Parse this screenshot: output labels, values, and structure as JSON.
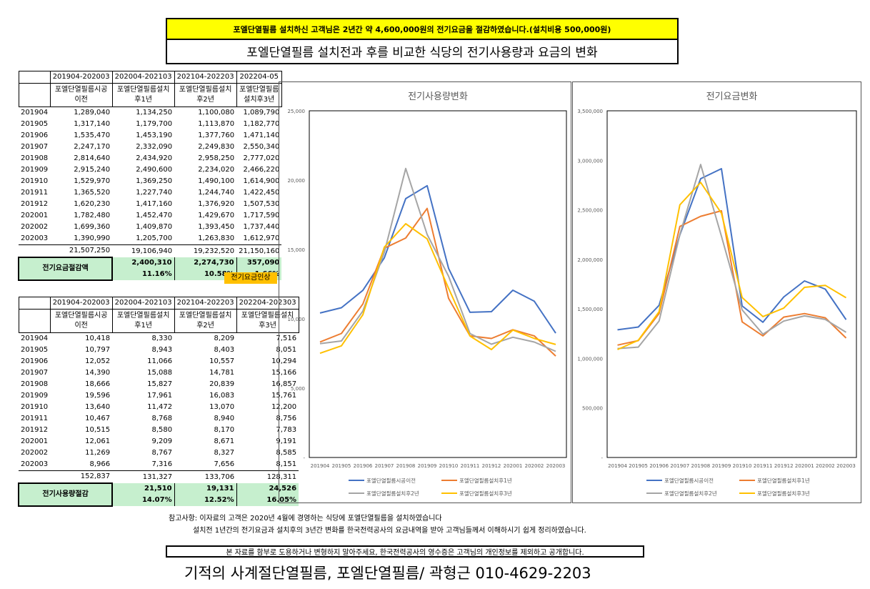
{
  "banner": "포엘단열필름 설치하신 고객님은 2년간 약 4,600,000원의 전기요금을 절감하였습니다.(설치비용 500,000원)",
  "subtitle": "포엘단열필름 설치전과 후를 비교한 식당의 전기사용량과 요금의 변화",
  "table1": {
    "periods": [
      "201904-202003",
      "202004-202103",
      "202104-202203",
      "202204-05"
    ],
    "labels": [
      "포엘단열필름시공이전",
      "포엘단열필름설치후1년",
      "포엘단열필름설치후2년",
      "포엘단열필름설치후3년"
    ],
    "rows": [
      [
        "201904",
        "1,289,040",
        "1,134,250",
        "1,100,080",
        "1,089,790"
      ],
      [
        "201905",
        "1,317,140",
        "1,179,700",
        "1,113,870",
        "1,182,770"
      ],
      [
        "201906",
        "1,535,470",
        "1,453,190",
        "1,377,760",
        "1,471,140"
      ],
      [
        "201907",
        "2,247,170",
        "2,332,090",
        "2,249,830",
        "2,550,340"
      ],
      [
        "201908",
        "2,814,640",
        "2,434,920",
        "2,958,250",
        "2,777,020"
      ],
      [
        "201909",
        "2,915,240",
        "2,490,600",
        "2,234,020",
        "2,466,220"
      ],
      [
        "201910",
        "1,529,970",
        "1,369,250",
        "1,490,100",
        "1,614,900"
      ],
      [
        "201911",
        "1,365,520",
        "1,227,740",
        "1,244,740",
        "1,422,450"
      ],
      [
        "201912",
        "1,620,230",
        "1,417,160",
        "1,376,920",
        "1,507,530"
      ],
      [
        "202001",
        "1,782,480",
        "1,452,470",
        "1,429,670",
        "1,717,590"
      ],
      [
        "202002",
        "1,699,360",
        "1,409,870",
        "1,393,450",
        "1,737,440"
      ],
      [
        "202003",
        "1,390,990",
        "1,205,700",
        "1,263,830",
        "1,612,970"
      ]
    ],
    "totals": [
      "21,507,250",
      "19,106,940",
      "19,232,520",
      "21,150,160"
    ],
    "saving_label": "전기요금절감액",
    "savings": [
      "2,400,310",
      "2,274,730",
      "357,090"
    ],
    "saving_pct": [
      "11.16%",
      "10.58%",
      "1.66%"
    ],
    "increase_note": "전기요금인상"
  },
  "table2": {
    "periods": [
      "201904-202003",
      "202004-202103",
      "202104-202203",
      "202204-202303"
    ],
    "labels": [
      "포엘단열필름시공이전",
      "포엘단열필름설치후1년",
      "포엘단열필름설치후2년",
      "포엘단열필름설치후3년"
    ],
    "rows": [
      [
        "201904",
        "10,418",
        "8,330",
        "8,209",
        "7,516"
      ],
      [
        "201905",
        "10,797",
        "8,943",
        "8,403",
        "8,051"
      ],
      [
        "201906",
        "12,052",
        "11,066",
        "10,557",
        "10,294"
      ],
      [
        "201907",
        "14,390",
        "15,088",
        "14,781",
        "15,166"
      ],
      [
        "201908",
        "18,666",
        "15,827",
        "20,839",
        "16,857"
      ],
      [
        "201909",
        "19,596",
        "17,961",
        "16,083",
        "15,761"
      ],
      [
        "201910",
        "13,640",
        "11,472",
        "13,070",
        "12,200"
      ],
      [
        "201911",
        "10,467",
        "8,768",
        "8,940",
        "8,756"
      ],
      [
        "201912",
        "10,515",
        "8,580",
        "8,170",
        "7,783"
      ],
      [
        "202001",
        "12,061",
        "9,209",
        "8,671",
        "9,191"
      ],
      [
        "202002",
        "11,269",
        "8,767",
        "8,327",
        "8,585"
      ],
      [
        "202003",
        "8,966",
        "7,316",
        "7,656",
        "8,151"
      ]
    ],
    "totals": [
      "152,837",
      "131,327",
      "133,706",
      "128,311"
    ],
    "saving_label": "전기사용량절감",
    "savings": [
      "21,510",
      "19,131",
      "24,526"
    ],
    "saving_pct": [
      "14.07%",
      "12.52%",
      "16.05%"
    ]
  },
  "chart_data": [
    {
      "type": "line",
      "title": "전기사용량변화",
      "categories": [
        "201904",
        "201905",
        "201906",
        "201907",
        "201908",
        "201909",
        "201910",
        "201911",
        "201912",
        "202001",
        "202002",
        "202003"
      ],
      "ylim": [
        0,
        25000
      ],
      "yticks": [
        0,
        5000,
        10000,
        15000,
        20000,
        25000
      ],
      "ytick_labels": [
        "-",
        "5,000",
        "10,000",
        "15,000",
        "20,000",
        "25,000"
      ],
      "grid": false,
      "legend": "bottom",
      "series": [
        {
          "name": "포엘단열필름시공이전",
          "color": "#4472c4",
          "values": [
            10418,
            10797,
            12052,
            14390,
            18666,
            19596,
            13640,
            10467,
            10515,
            12061,
            11269,
            8966
          ]
        },
        {
          "name": "포엘단열필름설치후1년",
          "color": "#ed7d31",
          "values": [
            8330,
            8943,
            11066,
            15088,
            15827,
            17961,
            11472,
            8768,
            8580,
            9209,
            8767,
            7316
          ]
        },
        {
          "name": "포엘단열필름설치후2년",
          "color": "#a5a5a5",
          "values": [
            8209,
            8403,
            10557,
            14781,
            20839,
            16083,
            13070,
            8940,
            8170,
            8671,
            8327,
            7656
          ]
        },
        {
          "name": "포엘단열필름설치후3년",
          "color": "#ffc000",
          "values": [
            7516,
            8051,
            10294,
            15166,
            16857,
            15761,
            12200,
            8756,
            7783,
            9191,
            8585,
            8151
          ]
        }
      ]
    },
    {
      "type": "line",
      "title": "전기요금변화",
      "categories": [
        "201904",
        "201905",
        "201906",
        "201907",
        "201908",
        "201909",
        "201910",
        "201911",
        "201912",
        "202001",
        "202002",
        "202003"
      ],
      "ylim": [
        0,
        3500000
      ],
      "yticks": [
        0,
        500000,
        1000000,
        1500000,
        2000000,
        2500000,
        3000000,
        3500000
      ],
      "ytick_labels": [
        "-",
        "500,000",
        "1,000,000",
        "1,500,000",
        "2,000,000",
        "2,500,000",
        "3,000,000",
        "3,500,000"
      ],
      "grid": false,
      "legend": "bottom",
      "series": [
        {
          "name": "포엘단열필름시공이전",
          "color": "#4472c4",
          "values": [
            1289040,
            1317140,
            1535470,
            2247170,
            2814640,
            2915240,
            1529970,
            1365520,
            1620230,
            1782480,
            1699360,
            1390990
          ]
        },
        {
          "name": "포엘단열필름설치후1년",
          "color": "#ed7d31",
          "values": [
            1134250,
            1179700,
            1453190,
            2332090,
            2434920,
            2490600,
            1369250,
            1227740,
            1417160,
            1452470,
            1409870,
            1205700
          ]
        },
        {
          "name": "포엘단열필름설치후2년",
          "color": "#a5a5a5",
          "values": [
            1100080,
            1113870,
            1377760,
            2249830,
            2958250,
            2234020,
            1490100,
            1244740,
            1376920,
            1429670,
            1393450,
            1263830
          ]
        },
        {
          "name": "포엘단열필름설치후3년",
          "color": "#ffc000",
          "values": [
            1089790,
            1182770,
            1471140,
            2550340,
            2777020,
            2466220,
            1614900,
            1422450,
            1507530,
            1717590,
            1737440,
            1612970
          ]
        }
      ]
    }
  ],
  "note1": "참고사항: 이자료의 고객은 2020년 4월에 경영하는 식당에 포엘단열필름을 설치하였습니다",
  "note2": "설치전 1년간의 전기요금과 설치후의 3년간 변화를 한국전력공사의 요금내역을 받아 고객님들께서 이해하시기 쉽게 정리하였습니다.",
  "warning": "본 자료를 함부로 도용하거나 변형하지 말아주세요, 한국전력공사의 영수증은 고객님의 개인정보를 제외하고 공개합니다.",
  "footer": "기적의 사계절단열필름, 포엘단열필름/ 곽형근 010-4629-2203"
}
